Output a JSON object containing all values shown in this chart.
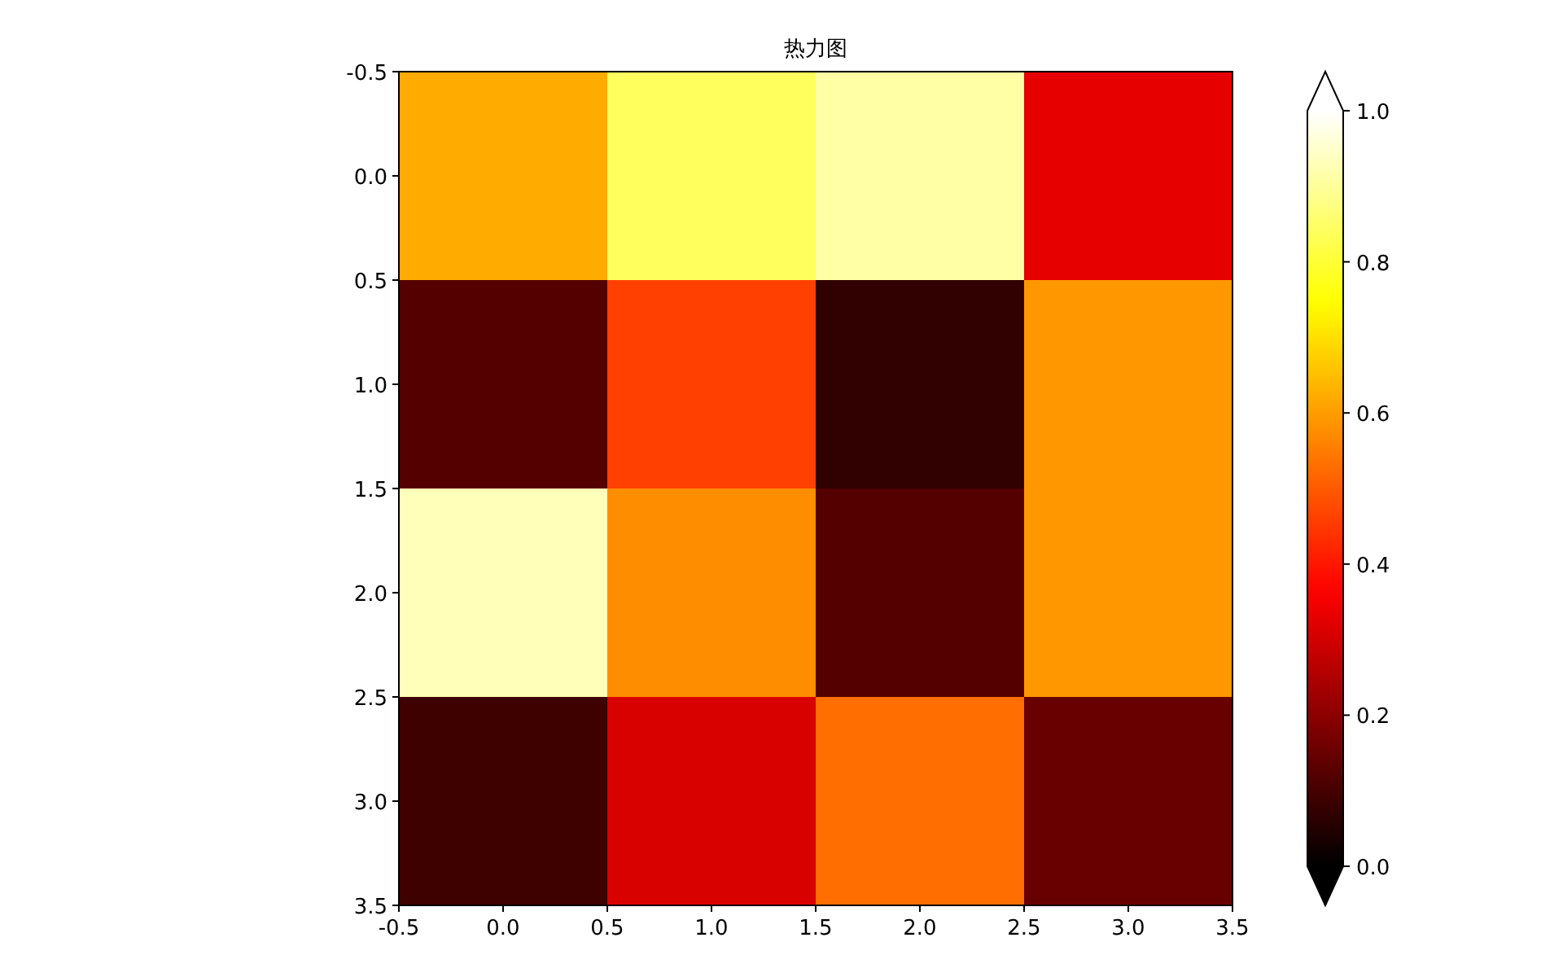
{
  "chart_data": {
    "type": "heatmap",
    "title": "热力图",
    "cells": [
      [
        0.62,
        0.84,
        0.91,
        0.33
      ],
      [
        0.12,
        0.46,
        0.07,
        0.59
      ],
      [
        0.93,
        0.575,
        0.12,
        0.59
      ],
      [
        0.09,
        0.31,
        0.53,
        0.15
      ]
    ],
    "xlim": [
      -0.5,
      3.5
    ],
    "ylim": [
      3.5,
      -0.5
    ],
    "xticks": [
      {
        "value": -0.5,
        "label": "-0.5"
      },
      {
        "value": 0,
        "label": "0.0"
      },
      {
        "value": 0.5,
        "label": "0.5"
      },
      {
        "value": 1,
        "label": "1.0"
      },
      {
        "value": 1.5,
        "label": "1.5"
      },
      {
        "value": 2,
        "label": "2.0"
      },
      {
        "value": 2.5,
        "label": "2.5"
      },
      {
        "value": 3,
        "label": "3.0"
      },
      {
        "value": 3.5,
        "label": "3.5"
      }
    ],
    "yticks": [
      {
        "value": -0.5,
        "label": "-0.5"
      },
      {
        "value": 0,
        "label": "0.0"
      },
      {
        "value": 0.5,
        "label": "0.5"
      },
      {
        "value": 1,
        "label": "1.0"
      },
      {
        "value": 1.5,
        "label": "1.5"
      },
      {
        "value": 2,
        "label": "2.0"
      },
      {
        "value": 2.5,
        "label": "2.5"
      },
      {
        "value": 3,
        "label": "3.0"
      },
      {
        "value": 3.5,
        "label": "3.5"
      }
    ],
    "clim": [
      0,
      1
    ],
    "cticks": [
      {
        "value": 0,
        "label": "0.0"
      },
      {
        "value": 0.2,
        "label": "0.2"
      },
      {
        "value": 0.4,
        "label": "0.4"
      },
      {
        "value": 0.6,
        "label": "0.6"
      },
      {
        "value": 0.8,
        "label": "0.8"
      },
      {
        "value": 1,
        "label": "1.0"
      }
    ],
    "grid": false
  }
}
